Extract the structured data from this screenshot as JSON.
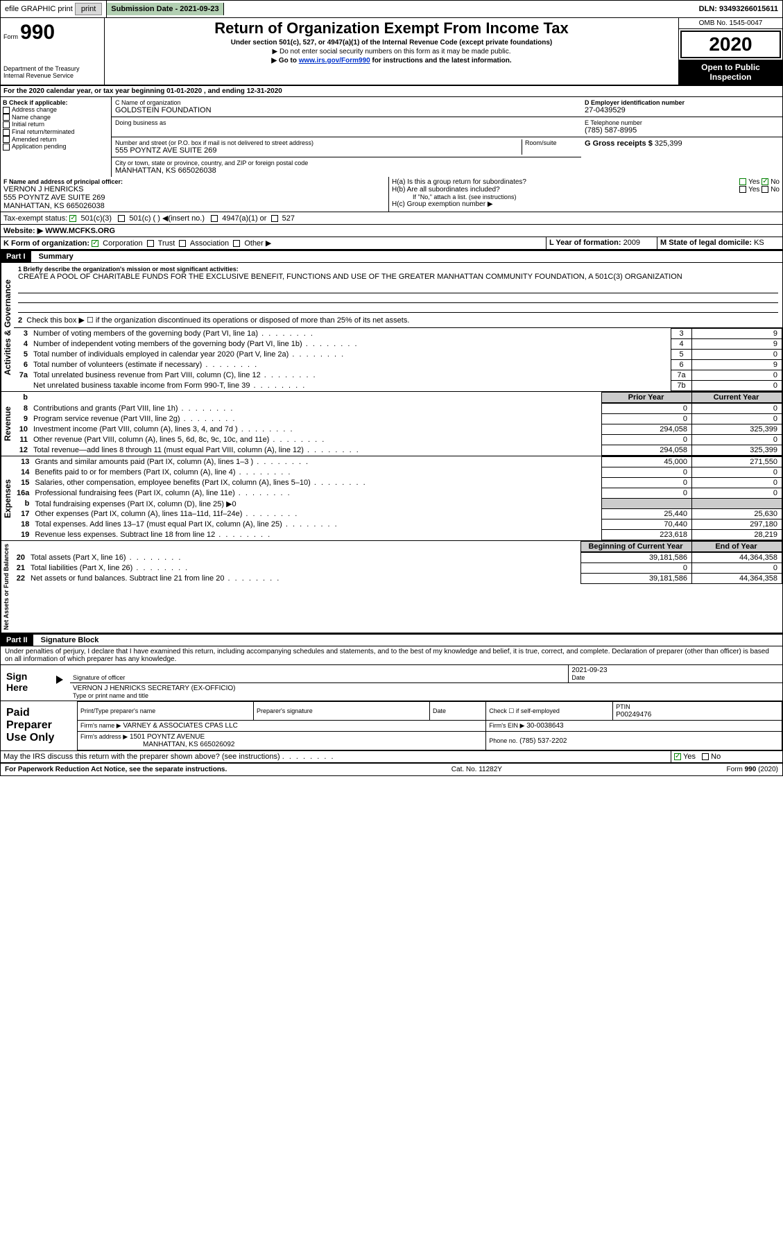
{
  "topbar": {
    "efile": "efile GRAPHIC print",
    "submission_label": "Submission Date - 2021-09-23",
    "dln": "DLN: 93493266015611"
  },
  "header": {
    "form_prefix": "Form",
    "form_num": "990",
    "title": "Return of Organization Exempt From Income Tax",
    "sub1": "Under section 501(c), 527, or 4947(a)(1) of the Internal Revenue Code (except private foundations)",
    "sub2": "▶ Do not enter social security numbers on this form as it may be made public.",
    "sub3_pre": "▶ Go to ",
    "sub3_link": "www.irs.gov/Form990",
    "sub3_post": " for instructions and the latest information.",
    "dept": "Department of the Treasury\nInternal Revenue Service",
    "omb": "OMB No. 1545-0047",
    "year": "2020",
    "open": "Open to Public Inspection"
  },
  "line_a": "For the 2020 calendar year, or tax year beginning 01-01-2020    , and ending 12-31-2020",
  "box_b": {
    "label": "B Check if applicable:",
    "items": [
      "Address change",
      "Name change",
      "Initial return",
      "Final return/terminated",
      "Amended return",
      "Application pending"
    ]
  },
  "box_c": {
    "name_label": "C Name of organization",
    "name": "GOLDSTEIN FOUNDATION",
    "dba_label": "Doing business as",
    "street_label": "Number and street (or P.O. box if mail is not delivered to street address)",
    "room_label": "Room/suite",
    "street": "555 POYNTZ AVE SUITE 269",
    "city_label": "City or town, state or province, country, and ZIP or foreign postal code",
    "city": "MANHATTAN, KS  665026038"
  },
  "box_d": {
    "label": "D Employer identification number",
    "value": "27-0439529"
  },
  "box_e": {
    "label": "E Telephone number",
    "value": "(785) 587-8995"
  },
  "box_g": {
    "label": "G Gross receipts $",
    "value": "325,399"
  },
  "box_f": {
    "label": "F  Name and address of principal officer:",
    "name": "VERNON J HENRICKS",
    "addr1": "555 POYNTZ AVE SUITE 269",
    "addr2": "MANHATTAN, KS  665026038"
  },
  "box_h": {
    "a": "H(a)  Is this a group return for subordinates?",
    "b": "H(b)  Are all subordinates included?",
    "b_note": "If \"No,\" attach a list. (see instructions)",
    "c": "H(c)  Group exemption number ▶",
    "yes": "Yes",
    "no": "No"
  },
  "tax_exempt": {
    "label": "Tax-exempt status:",
    "opt1": "501(c)(3)",
    "opt2": "501(c) (  ) ◀(insert no.)",
    "opt3": "4947(a)(1) or",
    "opt4": "527"
  },
  "website": {
    "label": "Website: ▶",
    "value": "WWW.MCFKS.ORG"
  },
  "box_k": {
    "label": "K Form of organization:",
    "opts": [
      "Corporation",
      "Trust",
      "Association",
      "Other ▶"
    ]
  },
  "box_l": {
    "label": "L Year of formation:",
    "value": "2009"
  },
  "box_m": {
    "label": "M State of legal domicile:",
    "value": "KS"
  },
  "part1": {
    "title": "Part I",
    "name": "Summary",
    "mission_label": "1  Briefly describe the organization's mission or most significant activities:",
    "mission": "CREATE A POOL OF CHARITABLE FUNDS FOR THE EXCLUSIVE BENEFIT, FUNCTIONS AND USE OF THE GREATER MANHATTAN COMMUNITY FOUNDATION, A 501C(3) ORGANIZATION",
    "line2": "Check this box ▶ ☐  if the organization discontinued its operations or disposed of more than 25% of its net assets."
  },
  "governance_label": "Activities & Governance",
  "gov_lines": [
    {
      "n": "3",
      "txt": "Number of voting members of the governing body (Part VI, line 1a)",
      "box": "3",
      "val": "9"
    },
    {
      "n": "4",
      "txt": "Number of independent voting members of the governing body (Part VI, line 1b)",
      "box": "4",
      "val": "9"
    },
    {
      "n": "5",
      "txt": "Total number of individuals employed in calendar year 2020 (Part V, line 2a)",
      "box": "5",
      "val": "0"
    },
    {
      "n": "6",
      "txt": "Total number of volunteers (estimate if necessary)",
      "box": "6",
      "val": "9"
    },
    {
      "n": "7a",
      "txt": "Total unrelated business revenue from Part VIII, column (C), line 12",
      "box": "7a",
      "val": "0"
    },
    {
      "n": "",
      "txt": "Net unrelated business taxable income from Form 990-T, line 39",
      "box": "7b",
      "val": "0"
    }
  ],
  "col_headers": {
    "prior": "Prior Year",
    "current": "Current Year"
  },
  "revenue_label": "Revenue",
  "revenue_lines": [
    {
      "n": "8",
      "txt": "Contributions and grants (Part VIII, line 1h)",
      "p": "0",
      "c": "0"
    },
    {
      "n": "9",
      "txt": "Program service revenue (Part VIII, line 2g)",
      "p": "0",
      "c": "0"
    },
    {
      "n": "10",
      "txt": "Investment income (Part VIII, column (A), lines 3, 4, and 7d )",
      "p": "294,058",
      "c": "325,399"
    },
    {
      "n": "11",
      "txt": "Other revenue (Part VIII, column (A), lines 5, 6d, 8c, 9c, 10c, and 11e)",
      "p": "0",
      "c": "0"
    },
    {
      "n": "12",
      "txt": "Total revenue—add lines 8 through 11 (must equal Part VIII, column (A), line 12)",
      "p": "294,058",
      "c": "325,399"
    }
  ],
  "expenses_label": "Expenses",
  "expense_lines": [
    {
      "n": "13",
      "txt": "Grants and similar amounts paid (Part IX, column (A), lines 1–3 )",
      "p": "45,000",
      "c": "271,550"
    },
    {
      "n": "14",
      "txt": "Benefits paid to or for members (Part IX, column (A), line 4)",
      "p": "0",
      "c": "0"
    },
    {
      "n": "15",
      "txt": "Salaries, other compensation, employee benefits (Part IX, column (A), lines 5–10)",
      "p": "0",
      "c": "0"
    },
    {
      "n": "16a",
      "txt": "Professional fundraising fees (Part IX, column (A), line 11e)",
      "p": "0",
      "c": "0"
    },
    {
      "n": "b",
      "txt": "Total fundraising expenses (Part IX, column (D), line 25) ▶0",
      "p": "",
      "c": "",
      "shade": true
    },
    {
      "n": "17",
      "txt": "Other expenses (Part IX, column (A), lines 11a–11d, 11f–24e)",
      "p": "25,440",
      "c": "25,630"
    },
    {
      "n": "18",
      "txt": "Total expenses. Add lines 13–17 (must equal Part IX, column (A), line 25)",
      "p": "70,440",
      "c": "297,180"
    },
    {
      "n": "19",
      "txt": "Revenue less expenses. Subtract line 18 from line 12",
      "p": "223,618",
      "c": "28,219"
    }
  ],
  "net_label": "Net Assets or Fund Balances",
  "net_headers": {
    "begin": "Beginning of Current Year",
    "end": "End of Year"
  },
  "net_lines": [
    {
      "n": "20",
      "txt": "Total assets (Part X, line 16)",
      "p": "39,181,586",
      "c": "44,364,358"
    },
    {
      "n": "21",
      "txt": "Total liabilities (Part X, line 26)",
      "p": "0",
      "c": "0"
    },
    {
      "n": "22",
      "txt": "Net assets or fund balances. Subtract line 21 from line 20",
      "p": "39,181,586",
      "c": "44,364,358"
    }
  ],
  "part2": {
    "title": "Part II",
    "name": "Signature Block"
  },
  "penalty": "Under penalties of perjury, I declare that I have examined this return, including accompanying schedules and statements, and to the best of my knowledge and belief, it is true, correct, and complete. Declaration of preparer (other than officer) is based on all information of which preparer has any knowledge.",
  "sign": {
    "here": "Sign Here",
    "sig_label": "Signature of officer",
    "date_label": "Date",
    "date": "2021-09-23",
    "name": "VERNON J HENRICKS SECRETARY (EX-OFFICIO)",
    "name_label": "Type or print name and title"
  },
  "preparer": {
    "label": "Paid Preparer Use Only",
    "print_label": "Print/Type preparer's name",
    "sig_label": "Preparer's signature",
    "date_label": "Date",
    "check_label": "Check ☐ if self-employed",
    "ptin_label": "PTIN",
    "ptin": "P00249476",
    "firm_name_label": "Firm's name    ▶",
    "firm_name": "VARNEY & ASSOCIATES CPAS LLC",
    "firm_ein_label": "Firm's EIN ▶",
    "firm_ein": "30-0038643",
    "firm_addr_label": "Firm's address ▶",
    "firm_addr1": "1501 POYNTZ AVENUE",
    "firm_addr2": "MANHATTAN, KS  665026092",
    "phone_label": "Phone no.",
    "phone": "(785) 537-2202"
  },
  "discuss": {
    "txt": "May the IRS discuss this return with the preparer shown above? (see instructions)",
    "yes": "Yes",
    "no": "No"
  },
  "footer": {
    "left": "For Paperwork Reduction Act Notice, see the separate instructions.",
    "mid": "Cat. No. 11282Y",
    "right": "Form 990 (2020)"
  }
}
